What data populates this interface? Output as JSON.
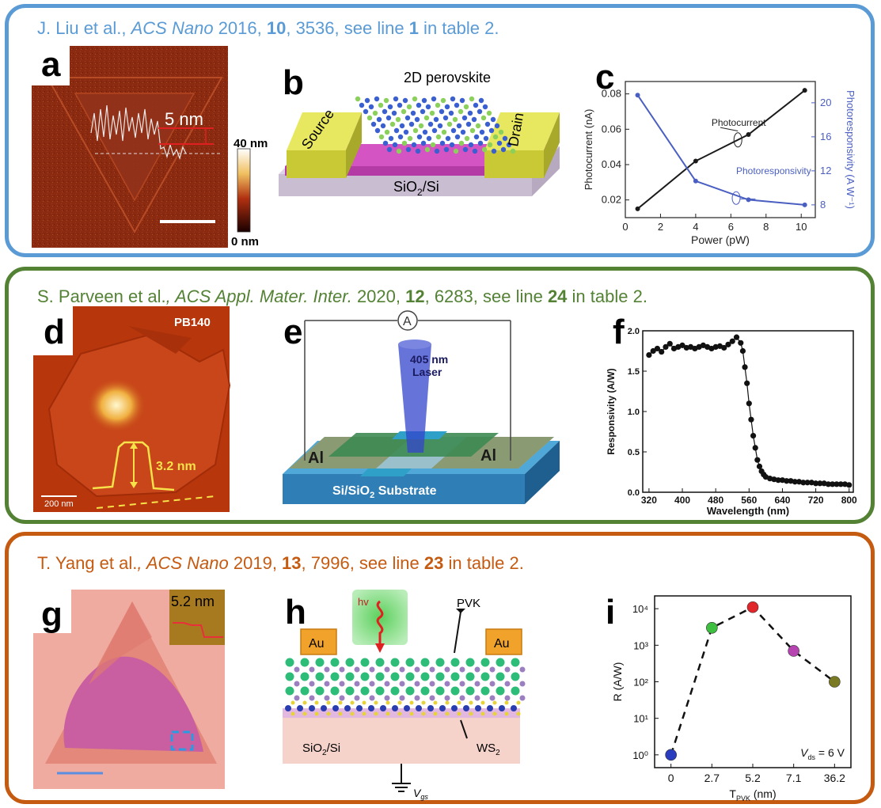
{
  "rows": [
    {
      "color": "#5b9bd5",
      "citation": {
        "authors": "J. Liu et al., ",
        "journal": "ACS Nano",
        "year": " 2016, ",
        "volume": "10",
        "pages": ", 3536, see line ",
        "line": "1",
        "suffix": " in table 2."
      }
    },
    {
      "color": "#548235",
      "citation": {
        "authors": "S. Parveen et al.",
        "sep": ", ",
        "journal": "ACS Appl. Mater. Inter.",
        "year": " 2020, ",
        "volume": "12",
        "pages": ", 6283, see line ",
        "line": "24",
        "suffix": " in table 2."
      }
    },
    {
      "color": "#c55a11",
      "citation": {
        "authors": "T. Yang et al.",
        "sep": ", ",
        "journal": "ACS Nano",
        "year": " 2019, ",
        "volume": "13",
        "pages": ", 7996, see line ",
        "line": "23",
        "suffix": " in table 2."
      }
    }
  ],
  "panels": {
    "a": {
      "letter": "a",
      "step_label": "5 nm",
      "scale_top": "40 nm",
      "scale_bottom": "0 nm"
    },
    "b": {
      "letter": "b",
      "title": "2D perovskite",
      "source": "Source",
      "drain": "Drain",
      "substrate_main": "SiO",
      "substrate_sub": "2",
      "substrate_tail": "/Si"
    },
    "c": {
      "letter": "c"
    },
    "d": {
      "letter": "d",
      "sample": "PB140",
      "height": "3.2 nm",
      "scalebar": "200 nm"
    },
    "e": {
      "letter": "e",
      "meter": "A",
      "laser_l1": "405 nm",
      "laser_l2": "Laser",
      "left_contact": "Al",
      "right_contact": "Al",
      "substrate_a": "Si/SiO",
      "substrate_sub": "2",
      "substrate_b": " Substrate"
    },
    "f": {
      "letter": "f"
    },
    "g": {
      "letter": "g",
      "inset": "5.2 nm"
    },
    "h": {
      "letter": "h",
      "hv": "hv",
      "pvk": "PVK",
      "au_left": "Au",
      "au_right": "Au",
      "ws2": "WS",
      "ws2_sub": "2",
      "substrate": "SiO",
      "substrate_sub": "2",
      "substrate_tail": "/Si",
      "vgs": "V",
      "vgs_sub": "gs"
    },
    "i": {
      "letter": "i"
    }
  },
  "chart_data": [
    {
      "id": "c",
      "type": "line",
      "xlabel": "Power (pW)",
      "ylabel": "Photocurrent (nA)",
      "y2label": "Photoresponsivity (A W⁻¹)",
      "xlim": [
        0,
        10.8
      ],
      "ylim": [
        0.01,
        0.087
      ],
      "y2lim": [
        6.5,
        22.5
      ],
      "xticks": [
        0,
        2,
        4,
        6,
        8,
        10
      ],
      "yticks": [
        0.02,
        0.04,
        0.06,
        0.08
      ],
      "y2ticks": [
        8,
        12,
        16,
        20
      ],
      "series": [
        {
          "name": "Photocurrent",
          "axis": "left",
          "color": "#1a1a1a",
          "x": [
            0.7,
            4,
            7,
            10.2
          ],
          "y": [
            0.015,
            0.042,
            0.057,
            0.082
          ]
        },
        {
          "name": "Photoresponsivity",
          "axis": "right",
          "color": "#4a5fc1",
          "x": [
            0.7,
            4,
            7,
            10.2
          ],
          "y": [
            20.9,
            10.8,
            8.6,
            8.0
          ]
        }
      ]
    },
    {
      "id": "f",
      "type": "line",
      "xlabel": "Wavelength (nm)",
      "ylabel": "Responsivity (A/W)",
      "xlim": [
        305,
        810
      ],
      "ylim": [
        0,
        2.0
      ],
      "xticks": [
        320,
        400,
        480,
        560,
        640,
        720,
        800
      ],
      "yticks": [
        0.0,
        0.5,
        1.0,
        1.5,
        2.0
      ],
      "series": [
        {
          "name": "",
          "color": "#111111",
          "x": [
            320,
            330,
            340,
            350,
            360,
            370,
            380,
            390,
            400,
            410,
            420,
            430,
            440,
            450,
            460,
            470,
            480,
            490,
            500,
            510,
            520,
            530,
            540,
            545,
            550,
            555,
            560,
            565,
            570,
            575,
            580,
            585,
            590,
            595,
            600,
            610,
            620,
            630,
            640,
            650,
            660,
            670,
            680,
            690,
            700,
            710,
            720,
            730,
            740,
            750,
            760,
            770,
            780,
            790,
            800
          ],
          "y": [
            1.7,
            1.75,
            1.78,
            1.74,
            1.8,
            1.84,
            1.78,
            1.8,
            1.82,
            1.79,
            1.8,
            1.78,
            1.8,
            1.82,
            1.8,
            1.78,
            1.8,
            1.81,
            1.79,
            1.83,
            1.87,
            1.92,
            1.85,
            1.75,
            1.55,
            1.35,
            1.1,
            0.9,
            0.7,
            0.55,
            0.4,
            0.32,
            0.26,
            0.22,
            0.19,
            0.17,
            0.16,
            0.15,
            0.15,
            0.14,
            0.14,
            0.13,
            0.13,
            0.12,
            0.12,
            0.12,
            0.11,
            0.11,
            0.11,
            0.1,
            0.1,
            0.1,
            0.1,
            0.1,
            0.09
          ]
        }
      ]
    },
    {
      "id": "i",
      "type": "scatter",
      "ylog": true,
      "xlabel": "T",
      "xlabel_sub": "PVK",
      "xlabel_unit": " (nm)",
      "ylabel": "R (A/W)",
      "categories": [
        "0",
        "2.7",
        "5.2",
        "7.1",
        "36.2"
      ],
      "yticks": [
        "10⁰",
        "10¹",
        "10²",
        "10³",
        "10⁴"
      ],
      "ylim_exp": [
        -0.35,
        4.35
      ],
      "values": [
        1,
        3000,
        11000,
        700,
        100
      ],
      "colors": [
        "#2a3dbf",
        "#3fbf3f",
        "#e0262a",
        "#b544b0",
        "#7a7a22"
      ],
      "annotation": {
        "v": "V",
        "sub": "ds",
        "rest": " = 6 V"
      }
    }
  ]
}
